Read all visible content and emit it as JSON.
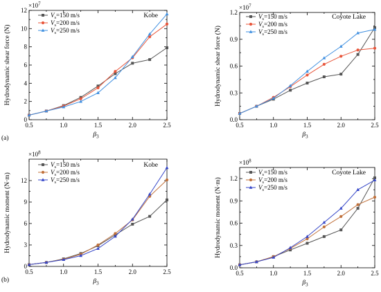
{
  "panels": [
    {
      "id": "a",
      "panel_label": "(a)",
      "site": "Kobe",
      "ylabel": "Hydrodynamic shear force (N)",
      "exponent_base": "×10",
      "exponent_power": "7",
      "xlabel_main": "β",
      "xlabel_sub": "3",
      "chart_data": {
        "type": "line",
        "x": [
          0.5,
          0.75,
          1.0,
          1.25,
          1.5,
          1.75,
          2.0,
          2.25,
          2.5
        ],
        "xlim": [
          0.5,
          2.5
        ],
        "ylim": [
          0,
          12
        ],
        "xticks": [
          "0.5",
          "1.0",
          "1.5",
          "2.0",
          "2.5"
        ],
        "yticks": [
          "0",
          "2",
          "4",
          "6",
          "8",
          "10",
          "12"
        ],
        "series": [
          {
            "name": "=150 m/s",
            "color": "#555555",
            "marker": "square",
            "values": [
              0.5,
              0.95,
              1.55,
              2.45,
              3.7,
              5.05,
              6.2,
              6.6,
              7.9
            ]
          },
          {
            "name": "=200 m/s",
            "color": "#e8553a",
            "marker": "circle",
            "values": [
              0.5,
              0.95,
              1.5,
              2.3,
              3.5,
              5.3,
              6.8,
              9.1,
              10.5
            ]
          },
          {
            "name": "=250 m/s",
            "color": "#3f8fe0",
            "marker": "triangle",
            "values": [
              0.5,
              0.95,
              1.4,
              2.0,
              2.95,
              4.6,
              6.9,
              9.4,
              11.6
            ]
          }
        ]
      }
    },
    {
      "id": "b",
      "panel_label": "",
      "site": "Coyote Lake",
      "ylabel": "Hydrodynamic shear force (N)",
      "exponent_base": "×10",
      "exponent_power": "7",
      "xlabel_main": "β",
      "xlabel_sub": "3",
      "chart_data": {
        "type": "line",
        "x": [
          0.5,
          0.75,
          1.0,
          1.25,
          1.5,
          1.75,
          2.0,
          2.25,
          2.5
        ],
        "xlim": [
          0.5,
          2.5
        ],
        "ylim": [
          0,
          1.2
        ],
        "xticks": [
          "0.5",
          "1.0",
          "1.5",
          "2.0",
          "2.5"
        ],
        "yticks": [
          "0.0",
          "0.3",
          "0.6",
          "0.9",
          "1.2"
        ],
        "series": [
          {
            "name": "=150 m/s",
            "color": "#555555",
            "marker": "square",
            "values": [
              0.07,
              0.15,
              0.23,
              0.33,
              0.41,
              0.48,
              0.51,
              0.73,
              1.03
            ]
          },
          {
            "name": "=200 m/s",
            "color": "#e8553a",
            "marker": "circle",
            "values": [
              0.07,
              0.15,
              0.25,
              0.37,
              0.5,
              0.62,
              0.71,
              0.78,
              0.8
            ]
          },
          {
            "name": "=250 m/s",
            "color": "#3f8fe0",
            "marker": "triangle",
            "values": [
              0.07,
              0.15,
              0.24,
              0.38,
              0.54,
              0.69,
              0.82,
              0.97,
              1.01
            ]
          }
        ]
      }
    },
    {
      "id": "c",
      "panel_label": "(b)",
      "site": "Kobe",
      "ylabel": "Hydrodynamic moment (N·m)",
      "exponent_base": "×10",
      "exponent_power": "8",
      "xlabel_main": "β",
      "xlabel_sub": "3",
      "chart_data": {
        "type": "line",
        "x": [
          0.5,
          0.75,
          1.0,
          1.25,
          1.5,
          1.75,
          2.0,
          2.25,
          2.5
        ],
        "xlim": [
          0.5,
          2.5
        ],
        "ylim": [
          0,
          15
        ],
        "xticks": [
          "0.5",
          "1.0",
          "1.5",
          "2.0",
          "2.5"
        ],
        "yticks": [
          "0",
          "3",
          "6",
          "9",
          "12"
        ],
        "series": [
          {
            "name": "=150 m/s",
            "color": "#555555",
            "marker": "square",
            "values": [
              0.25,
              0.55,
              1.05,
              1.8,
              2.9,
              4.4,
              5.9,
              7.0,
              9.3
            ]
          },
          {
            "name": "=200 m/s",
            "color": "#c0703a",
            "marker": "circle",
            "values": [
              0.25,
              0.55,
              1.0,
              1.7,
              3.0,
              4.6,
              6.5,
              9.8,
              12.1
            ]
          },
          {
            "name": "=250 m/s",
            "color": "#3546c8",
            "marker": "triangle",
            "values": [
              0.25,
              0.55,
              0.95,
              1.5,
              2.5,
              4.2,
              6.6,
              10.1,
              13.8
            ]
          }
        ]
      }
    },
    {
      "id": "d",
      "panel_label": "",
      "site": "Coyote Lake",
      "ylabel": "Hydrodynamic moment (N·m)",
      "exponent_base": "×10",
      "exponent_power": "8",
      "xlabel_main": "β",
      "xlabel_sub": "3",
      "chart_data": {
        "type": "line",
        "x": [
          0.5,
          0.75,
          1.0,
          1.25,
          1.5,
          1.75,
          2.0,
          2.25,
          2.5
        ],
        "xlim": [
          0.5,
          2.5
        ],
        "ylim": [
          0,
          1.35
        ],
        "xticks": [
          "0.5",
          "1.0",
          "1.5",
          "2.0",
          "2.5"
        ],
        "yticks": [
          "0.0",
          "0.3",
          "0.6",
          "0.9",
          "1.2"
        ],
        "series": [
          {
            "name": "=150 m/s",
            "color": "#555555",
            "marker": "square",
            "values": [
              0.04,
              0.08,
              0.15,
              0.24,
              0.33,
              0.42,
              0.51,
              0.8,
              1.21
            ]
          },
          {
            "name": "=200 m/s",
            "color": "#c0703a",
            "marker": "circle",
            "values": [
              0.04,
              0.08,
              0.15,
              0.26,
              0.39,
              0.55,
              0.69,
              0.85,
              0.95
            ]
          },
          {
            "name": "=250 m/s",
            "color": "#3546c8",
            "marker": "triangle",
            "values": [
              0.04,
              0.08,
              0.14,
              0.27,
              0.42,
              0.61,
              0.8,
              1.05,
              1.18
            ]
          }
        ]
      }
    }
  ],
  "legend_symbol": "V",
  "legend_symbol_sub": "s"
}
